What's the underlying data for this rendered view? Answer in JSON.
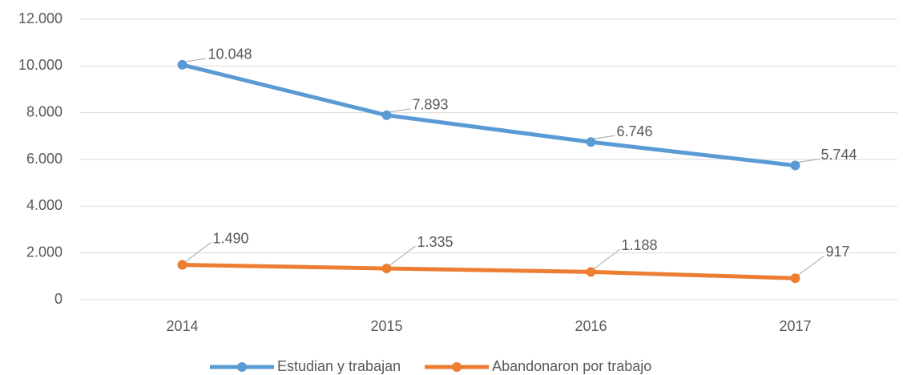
{
  "chart_data": {
    "type": "line",
    "categories": [
      "2014",
      "2015",
      "2016",
      "2017"
    ],
    "series": [
      {
        "name": "Estudian y trabajan",
        "color": "#5b9bd5",
        "values": [
          10048,
          7893,
          6746,
          5744
        ],
        "value_labels": [
          "10.048",
          "7.893",
          "6.746",
          "5.744"
        ]
      },
      {
        "name": "Abandonaron por trabajo",
        "color": "#ed7d31",
        "values": [
          1490,
          1335,
          1188,
          917
        ],
        "value_labels": [
          "1.490",
          "1.335",
          "1.188",
          "917"
        ]
      }
    ],
    "ylim": [
      0,
      12000
    ],
    "yticks": [
      0,
      {
        "value": 2000,
        "label": "2.000"
      },
      {
        "value": 4000,
        "label": "4.000"
      },
      {
        "value": 6000,
        "label": "6.000"
      },
      {
        "value": 8000,
        "label": "8.000"
      },
      {
        "value": 10000,
        "label": "10.000"
      },
      {
        "value": 12000,
        "label": "12.000"
      }
    ],
    "grid": true,
    "legend": "bottom"
  }
}
